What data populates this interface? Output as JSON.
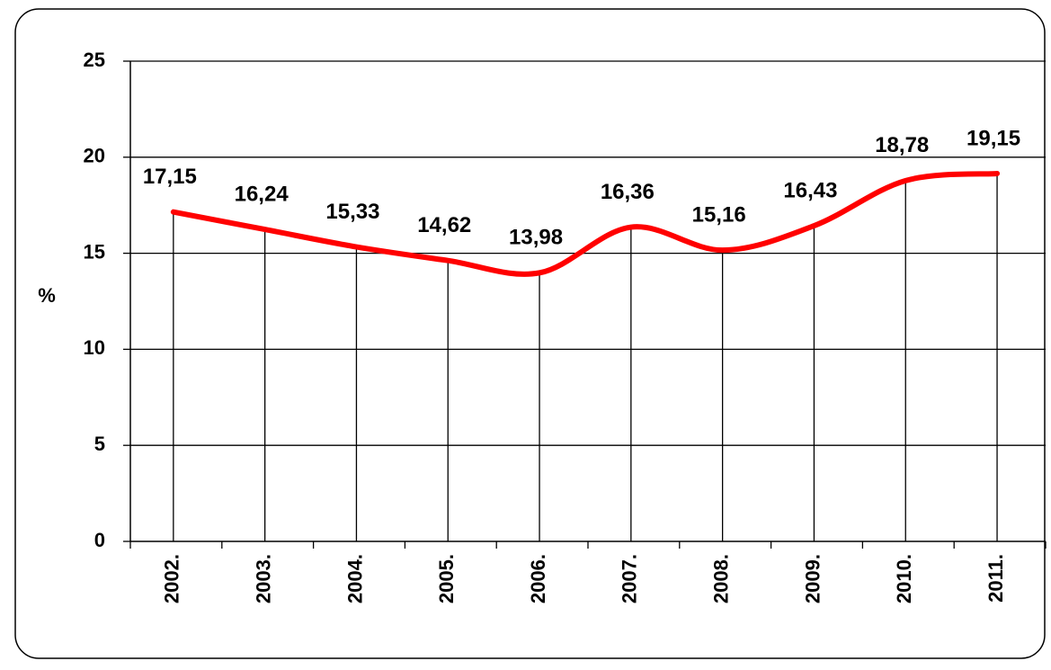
{
  "chart_data": {
    "type": "line",
    "y_label": "%",
    "categories": [
      "2002.",
      "2003.",
      "2004.",
      "2005.",
      "2006.",
      "2007.",
      "2008.",
      "2009.",
      "2010.",
      "2011."
    ],
    "values": [
      17.15,
      16.24,
      15.33,
      14.62,
      13.98,
      16.36,
      15.16,
      16.43,
      18.78,
      19.15
    ],
    "value_labels": [
      "17,15",
      "16,24",
      "15,33",
      "14,62",
      "13,98",
      "16,36",
      "15,16",
      "16,43",
      "18,78",
      "19,15"
    ],
    "color": "#ff0000",
    "ylim": [
      0,
      25
    ],
    "yticks": [
      0,
      5,
      10,
      15,
      20,
      25
    ],
    "grid": true,
    "smooth": true,
    "drop_lines": true
  }
}
